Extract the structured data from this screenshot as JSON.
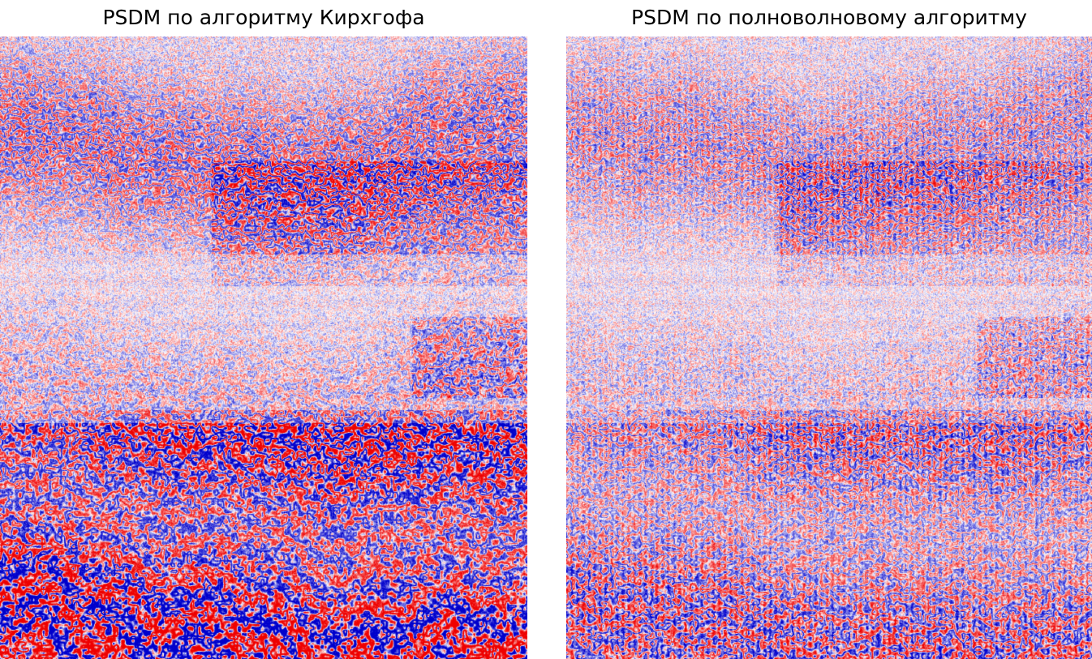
{
  "panels": [
    {
      "title": "PSDM по алгоритму Кирхгофа",
      "image": "seismic-section-kirchhoff",
      "colormap": [
        "#0000cc",
        "#ffffff",
        "#ee0000"
      ]
    },
    {
      "title": "PSDM по полноволновому алгоритму",
      "image": "seismic-section-full-wave",
      "colormap": [
        "#0000cc",
        "#ffffff",
        "#ee0000"
      ]
    }
  ]
}
